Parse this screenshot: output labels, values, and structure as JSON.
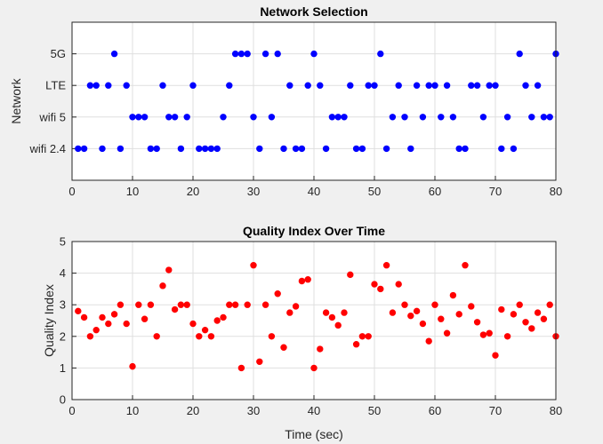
{
  "chart_data": [
    {
      "type": "scatter",
      "title": "Network Selection",
      "xlabel": "",
      "ylabel": "Network",
      "xlim": [
        0,
        80
      ],
      "ylim": [
        0,
        5
      ],
      "x_ticks": [
        0,
        10,
        20,
        30,
        40,
        50,
        60,
        70,
        80
      ],
      "y_tick_values": [
        1,
        2,
        3,
        4
      ],
      "y_tick_labels": [
        "wifi 2.4",
        "wifi 5",
        "LTE",
        "5G"
      ],
      "grid": true,
      "marker_color": "#0000ff",
      "series": [
        {
          "x": [
            1,
            2,
            3,
            4,
            5,
            6,
            7,
            8,
            9,
            10,
            11,
            12,
            13,
            14,
            15,
            16,
            17,
            18,
            19,
            20,
            21,
            22,
            23,
            24,
            25,
            26,
            27,
            28,
            29,
            30,
            31,
            32,
            33,
            34,
            35,
            36,
            37,
            38,
            39,
            40,
            41,
            42,
            43,
            44,
            45,
            46,
            47,
            48,
            49,
            50,
            51,
            52,
            53,
            54,
            55,
            56,
            57,
            58,
            59,
            60,
            61,
            62,
            63,
            64,
            65,
            66,
            67,
            68,
            69,
            70,
            71,
            72,
            73,
            74,
            75,
            76,
            77,
            78,
            79,
            80
          ],
          "y": [
            1,
            1,
            3,
            3,
            1,
            3,
            4,
            1,
            3,
            2,
            2,
            2,
            1,
            1,
            3,
            2,
            2,
            1,
            2,
            3,
            1,
            1,
            1,
            1,
            2,
            3,
            4,
            4,
            4,
            2,
            1,
            4,
            2,
            4,
            1,
            3,
            1,
            1,
            3,
            4,
            3,
            1,
            2,
            2,
            2,
            3,
            1,
            1,
            3,
            3,
            4,
            1,
            2,
            3,
            2,
            1,
            3,
            2,
            3,
            3,
            2,
            3,
            2,
            1,
            1,
            3,
            3,
            2,
            3,
            3,
            1,
            2,
            1,
            4,
            3,
            2,
            3,
            2,
            2,
            4
          ]
        }
      ]
    },
    {
      "type": "scatter",
      "title": "Quality Index Over Time",
      "xlabel": "Time (sec)",
      "ylabel": "Quality Index",
      "xlim": [
        0,
        80
      ],
      "ylim": [
        0,
        5
      ],
      "x_ticks": [
        0,
        10,
        20,
        30,
        40,
        50,
        60,
        70,
        80
      ],
      "y_ticks": [
        0,
        1,
        2,
        3,
        4,
        5
      ],
      "grid": true,
      "marker_color": "#ff0000",
      "series": [
        {
          "x": [
            1,
            2,
            3,
            4,
            5,
            6,
            7,
            8,
            9,
            10,
            11,
            12,
            13,
            14,
            15,
            16,
            17,
            18,
            19,
            20,
            21,
            22,
            23,
            24,
            25,
            26,
            27,
            28,
            29,
            30,
            31,
            32,
            33,
            34,
            35,
            36,
            37,
            38,
            39,
            40,
            41,
            42,
            43,
            44,
            45,
            46,
            47,
            48,
            49,
            50,
            51,
            52,
            53,
            54,
            55,
            56,
            57,
            58,
            59,
            60,
            61,
            62,
            63,
            64,
            65,
            66,
            67,
            68,
            69,
            70,
            71,
            72,
            73,
            74,
            75,
            76,
            77,
            78,
            79,
            80
          ],
          "y": [
            2.8,
            2.6,
            2.0,
            2.2,
            2.6,
            2.4,
            2.7,
            3.0,
            2.4,
            1.05,
            3.0,
            2.55,
            3.0,
            2.0,
            3.6,
            4.1,
            2.85,
            3.0,
            3.0,
            2.4,
            2.0,
            2.2,
            2.0,
            2.5,
            2.6,
            3.0,
            3.0,
            1.0,
            3.0,
            4.25,
            1.2,
            3.0,
            2.0,
            3.35,
            1.65,
            2.75,
            2.95,
            3.75,
            3.8,
            1.0,
            1.6,
            2.75,
            2.6,
            2.35,
            2.75,
            3.95,
            1.75,
            2.0,
            2.0,
            3.65,
            3.5,
            4.25,
            2.75,
            3.65,
            3.0,
            2.65,
            2.8,
            2.4,
            1.85,
            3.0,
            2.55,
            2.1,
            3.3,
            2.7,
            4.25,
            2.95,
            2.45,
            2.05,
            2.1,
            1.4,
            2.85,
            2.0,
            2.7,
            3.0,
            2.45,
            2.25,
            2.75,
            2.55,
            3.0,
            2.0
          ]
        }
      ]
    }
  ]
}
